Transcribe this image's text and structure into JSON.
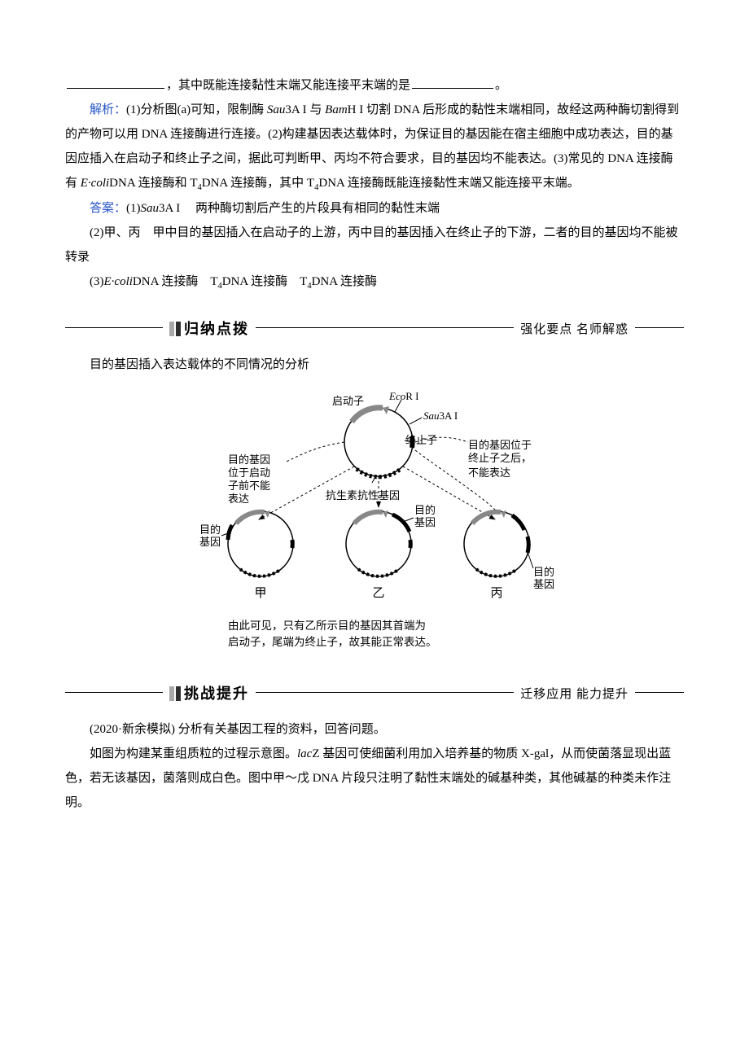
{
  "fill_line": {
    "prefix": "",
    "blank1_width": 120,
    "mid": "，其中既能连接黏性末端又能连接平末端的是",
    "blank2_width": 100,
    "suffix": "。"
  },
  "analysis": {
    "label": "解析：",
    "text": "(1)分析图(a)可知，限制酶 <span class='italic'>Sau</span>3A I 与 <span class='italic'>Bam</span>H I 切割 DNA 后形成的黏性末端相同，故经这两种酶切割得到的产物可以用 DNA 连接酶进行连接。(2)构建基因表达载体时，为保证目的基因能在宿主细胞中成功表达，目的基因应插入在启动子和终止子之间，据此可判断甲、丙均不符合要求，目的基因均不能表达。(3)常见的 DNA 连接酶有 <span class='italic'>E·coli</span>DNA 连接酶和 T<span class='sub'>4</span>DNA 连接酶，其中 T<span class='sub'>4</span>DNA 连接酶既能连接黏性末端又能连接平末端。"
  },
  "answer": {
    "label": "答案：",
    "items": [
      "(1)<span class='italic'>Sau</span>3A I 　两种酶切割后产生的片段具有相同的黏性末端",
      "(2)甲、丙　甲中目的基因插入在启动子的上游，丙中目的基因插入在终止子的下游，二者的目的基因均不能被转录",
      "(3)<span class='italic'>E·coli</span>DNA 连接酶　T<span class='sub'>4</span>DNA 连接酶　T<span class='sub'>4</span>DNA 连接酶"
    ]
  },
  "section1": {
    "title": "归纳点拨",
    "subtitle": "强化要点 名师解惑"
  },
  "summary_title": "目的基因插入表达载体的不同情况的分析",
  "diagram": {
    "top": {
      "promoter": "启动子",
      "ecoR": "EcoR I",
      "sau3A": "Sau3A I",
      "terminator": "终止子",
      "resistance": "抗生素抗性基因"
    },
    "left_note": [
      "目的基因",
      "位于启动",
      "子前不能",
      "表达"
    ],
    "right_note": [
      "目的基因位于",
      "终止子之后，",
      "不能表达"
    ],
    "gene_label": "目的\n基因",
    "bottom_labels": [
      "甲",
      "乙",
      "丙"
    ],
    "caption": [
      "由此可见，只有乙所示目的基因其首端为",
      "启动子，尾端为终止子，故其能正常表达。"
    ],
    "colors": {
      "stroke": "#000000",
      "dash": "#000000",
      "fill_arrow": "#a8a8a8",
      "hatch": "#000000"
    }
  },
  "section2": {
    "title": "挑战提升",
    "subtitle": "迁移应用 能力提升"
  },
  "challenge": {
    "source": "(2020·新余模拟)",
    "lead": "分析有关基因工程的资料，回答问题。",
    "body": "如图为构建某重组质粒的过程示意图。<span class='italic'>lac</span>Z 基因可使细菌利用加入培养基的物质 X-gal，从而使菌落显现出蓝色，若无该基因，菌落则成白色。图中甲～戊 DNA 片段只注明了黏性末端处的碱基种类，其他碱基的种类未作注明。"
  }
}
